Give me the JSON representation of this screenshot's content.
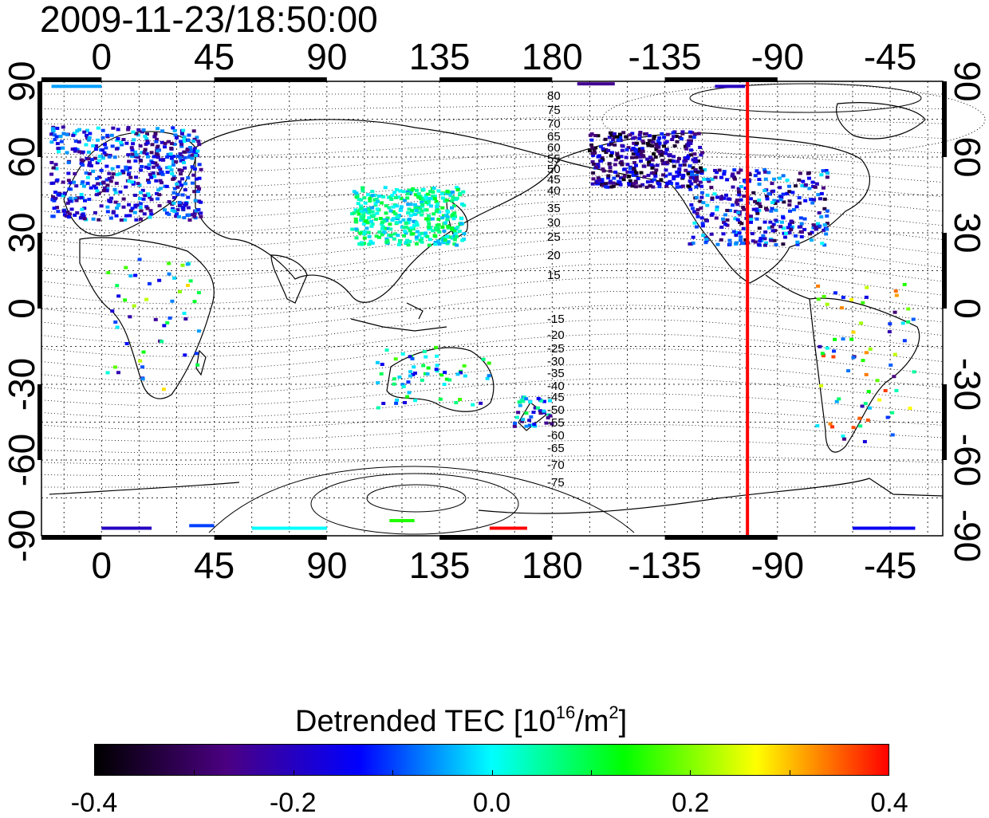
{
  "timestamp": "2009-11-23/18:50:00",
  "map": {
    "x_ticks": [
      "0",
      "45",
      "90",
      "135",
      "180",
      "-135",
      "-90",
      "-45"
    ],
    "y_ticks": [
      "90",
      "60",
      "30",
      "0",
      "-30",
      "-60",
      "-90"
    ],
    "contour_labels": [
      "80",
      "75",
      "70",
      "65",
      "60",
      "55",
      "50",
      "45",
      "40",
      "35",
      "30",
      "25",
      "20",
      "15",
      "-15",
      "-20",
      "-25",
      "-30",
      "-35",
      "-40",
      "-45",
      "-50",
      "-55",
      "-60",
      "-65",
      "-70",
      "-75"
    ],
    "red_line_longitude": -102,
    "line_color": "#ff0000"
  },
  "colorbar": {
    "title": "Detrended TEC  [10",
    "exponent": "16",
    "unit": "/m",
    "unit_exp": "2",
    "ticks": [
      "-0.4",
      "-0.2",
      "0.0",
      "0.2",
      "0.4"
    ],
    "min": -0.4,
    "max": 0.4,
    "colors": [
      "#000000",
      "#4b0082",
      "#0000ff",
      "#00ffff",
      "#00ff00",
      "#ffff00",
      "#ff0000"
    ]
  }
}
